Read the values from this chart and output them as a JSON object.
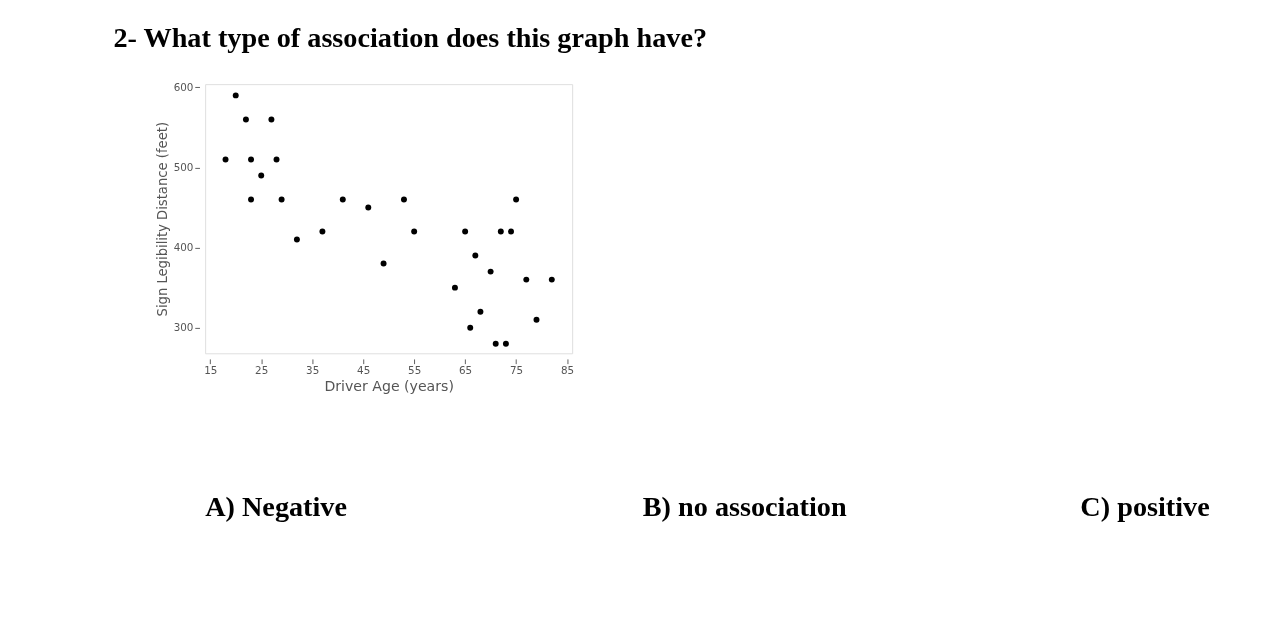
{
  "chart_data": {
    "type": "scatter",
    "title": "2-  What type of association does this graph have?",
    "xlabel": "Driver Age (years)",
    "ylabel": "Sign Legibility Distance (feet)",
    "x": [
      18,
      20,
      22,
      23,
      23,
      25,
      27,
      28,
      29,
      32,
      37,
      41,
      46,
      49,
      53,
      55,
      63,
      65,
      66,
      67,
      68,
      70,
      71,
      72,
      73,
      74,
      75,
      77,
      79,
      82
    ],
    "series": [
      {
        "color": "#000000",
        "values": [
          510,
          590,
          560,
          510,
          460,
          490,
          560,
          510,
          460,
          410,
          420,
          460,
          450,
          380,
          460,
          420,
          350,
          420,
          300,
          390,
          320,
          370,
          280,
          420,
          280,
          420,
          460,
          360,
          310,
          360
        ]
      }
    ],
    "xlim": [
      14,
      86
    ],
    "xticks": [
      15,
      25,
      35,
      45,
      55,
      65,
      75,
      85
    ],
    "ylim": [
      268,
      604
    ],
    "yticks": [
      300,
      400,
      500,
      600
    ],
    "grid": false,
    "legend": false,
    "marker": "circle",
    "annotations": [
      "A) Negative",
      "B) no association",
      "C) positive"
    ]
  }
}
